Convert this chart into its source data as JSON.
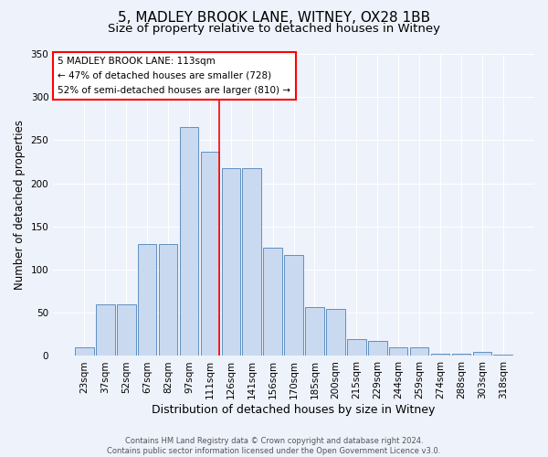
{
  "title1": "5, MADLEY BROOK LANE, WITNEY, OX28 1BB",
  "title2": "Size of property relative to detached houses in Witney",
  "xlabel": "Distribution of detached houses by size in Witney",
  "ylabel": "Number of detached properties",
  "categories": [
    "23sqm",
    "37sqm",
    "52sqm",
    "67sqm",
    "82sqm",
    "97sqm",
    "111sqm",
    "126sqm",
    "141sqm",
    "156sqm",
    "170sqm",
    "185sqm",
    "200sqm",
    "215sqm",
    "229sqm",
    "244sqm",
    "259sqm",
    "274sqm",
    "288sqm",
    "303sqm",
    "318sqm"
  ],
  "values": [
    10,
    60,
    60,
    130,
    130,
    265,
    237,
    218,
    218,
    125,
    117,
    57,
    55,
    20,
    17,
    10,
    10,
    3,
    3,
    5,
    2
  ],
  "bar_color": "#c9d9f0",
  "bar_edge_color": "#6090c0",
  "red_line_index": 6,
  "annotation_lines": [
    "5 MADLEY BROOK LANE: 113sqm",
    "← 47% of detached houses are smaller (728)",
    "52% of semi-detached houses are larger (810) →"
  ],
  "footer1": "Contains HM Land Registry data © Crown copyright and database right 2024.",
  "footer2": "Contains public sector information licensed under the Open Government Licence v3.0.",
  "background_color": "#eef2fb",
  "ylim": [
    0,
    350
  ],
  "title1_fontsize": 11,
  "title2_fontsize": 9.5,
  "xlabel_fontsize": 9,
  "ylabel_fontsize": 8.5,
  "tick_fontsize": 7.5,
  "ann_fontsize": 7.5,
  "footer_fontsize": 6
}
